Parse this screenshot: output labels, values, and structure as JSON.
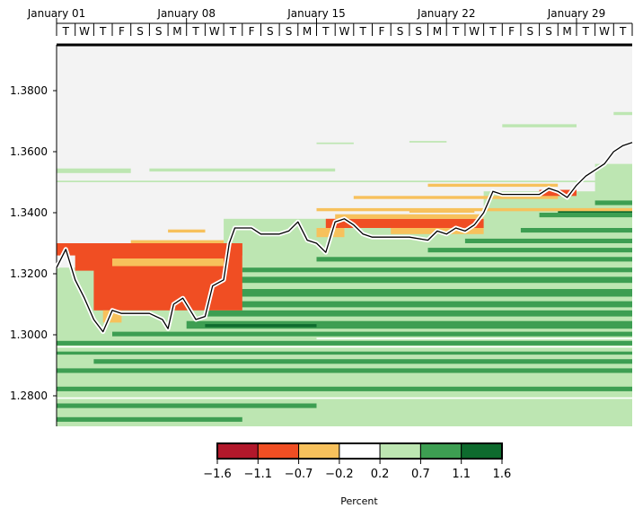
{
  "chart_data": {
    "type": "heatmap",
    "title": "",
    "colorbar_label": "Percent",
    "colorbar": {
      "boundaries": [
        "-1.6",
        "-1.1",
        "-0.7",
        "-0.2",
        "0.2",
        "0.7",
        "1.1",
        "1.6"
      ],
      "colors": [
        "#b2182b",
        "#f04e23",
        "#f7c15c",
        "#ffffff",
        "#bde6b2",
        "#3d9e52",
        "#0e6b2e"
      ]
    },
    "x_axis": {
      "position": "top",
      "range_days": [
        0,
        31
      ],
      "date_labels": [
        {
          "label": "January 01",
          "day": 0
        },
        {
          "label": "January 08",
          "day": 7
        },
        {
          "label": "January 15",
          "day": 14
        },
        {
          "label": "January 22",
          "day": 21
        },
        {
          "label": "January 29",
          "day": 28
        }
      ],
      "weekday_letters": [
        "T",
        "W",
        "T",
        "F",
        "S",
        "S",
        "M",
        "T",
        "W",
        "T",
        "F",
        "S",
        "S",
        "M",
        "T",
        "W",
        "T",
        "F",
        "S",
        "S",
        "M",
        "T",
        "W",
        "T",
        "F",
        "S",
        "S",
        "M",
        "T",
        "W",
        "T"
      ]
    },
    "y_axis": {
      "range": [
        1.27,
        1.395
      ],
      "ticks": [
        "1.2800",
        "1.3000",
        "1.3200",
        "1.3400",
        "1.3600",
        "1.3800"
      ]
    },
    "price_line": [
      [
        0.0,
        1.322
      ],
      [
        0.5,
        1.328
      ],
      [
        1.0,
        1.318
      ],
      [
        1.5,
        1.312
      ],
      [
        2.0,
        1.305
      ],
      [
        2.5,
        1.301
      ],
      [
        3.0,
        1.308
      ],
      [
        3.5,
        1.307
      ],
      [
        4.0,
        1.307
      ],
      [
        5.0,
        1.307
      ],
      [
        5.7,
        1.305
      ],
      [
        6.0,
        1.302
      ],
      [
        6.3,
        1.31
      ],
      [
        6.8,
        1.312
      ],
      [
        7.2,
        1.308
      ],
      [
        7.5,
        1.305
      ],
      [
        8.0,
        1.306
      ],
      [
        8.4,
        1.316
      ],
      [
        9.0,
        1.318
      ],
      [
        9.3,
        1.33
      ],
      [
        9.6,
        1.335
      ],
      [
        10.5,
        1.335
      ],
      [
        11.0,
        1.333
      ],
      [
        12.0,
        1.333
      ],
      [
        12.5,
        1.334
      ],
      [
        13.0,
        1.337
      ],
      [
        13.5,
        1.331
      ],
      [
        14.0,
        1.33
      ],
      [
        14.5,
        1.327
      ],
      [
        15.0,
        1.337
      ],
      [
        15.5,
        1.338
      ],
      [
        16.0,
        1.336
      ],
      [
        16.5,
        1.333
      ],
      [
        17.0,
        1.332
      ],
      [
        18.0,
        1.332
      ],
      [
        19.0,
        1.332
      ],
      [
        20.0,
        1.331
      ],
      [
        20.5,
        1.334
      ],
      [
        21.0,
        1.333
      ],
      [
        21.5,
        1.335
      ],
      [
        22.0,
        1.334
      ],
      [
        22.5,
        1.336
      ],
      [
        23.0,
        1.34
      ],
      [
        23.5,
        1.347
      ],
      [
        24.0,
        1.346
      ],
      [
        25.0,
        1.346
      ],
      [
        26.0,
        1.346
      ],
      [
        26.5,
        1.348
      ],
      [
        27.0,
        1.347
      ],
      [
        27.5,
        1.345
      ],
      [
        28.0,
        1.349
      ],
      [
        28.5,
        1.352
      ],
      [
        29.0,
        1.354
      ],
      [
        29.5,
        1.356
      ],
      [
        30.0,
        1.36
      ],
      [
        30.5,
        1.362
      ],
      [
        31.0,
        1.363
      ]
    ]
  }
}
